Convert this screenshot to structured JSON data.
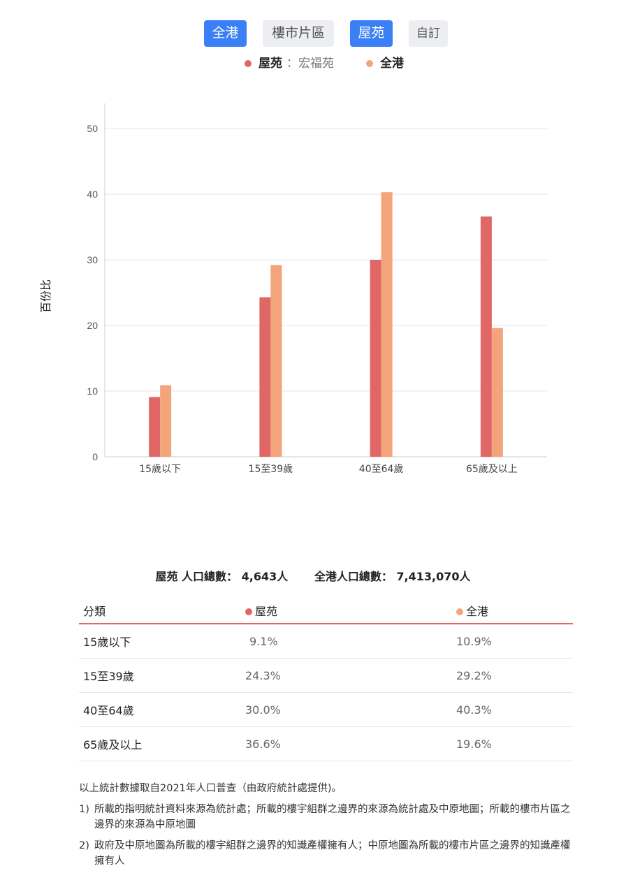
{
  "buttons": [
    {
      "label": "全港",
      "active": true
    },
    {
      "label": "樓市片區",
      "active": false
    },
    {
      "label": "屋苑",
      "active": true
    },
    {
      "label": "自訂",
      "active": false
    }
  ],
  "legend": {
    "series1": "屋苑",
    "series1_detail": "：宏福苑",
    "series2": "全港"
  },
  "colors": {
    "series1": "#e06766",
    "series2": "#f3a47a",
    "active_button": "#3a7ff5"
  },
  "chart_data": {
    "type": "bar",
    "categories": [
      "15歲以下",
      "15至39歲",
      "40至64歲",
      "65歲及以上"
    ],
    "series": [
      {
        "name": "屋苑",
        "values": [
          9.1,
          24.3,
          30.0,
          36.6
        ]
      },
      {
        "name": "全港",
        "values": [
          10.9,
          29.2,
          40.3,
          19.6
        ]
      }
    ],
    "ylabel": "百份比",
    "ylim": [
      0,
      50
    ],
    "yticks": [
      0,
      10,
      20,
      30,
      40,
      50
    ],
    "grid": true,
    "legend": "top"
  },
  "totals": {
    "estate": "屋苑 人口總數： 4,643人",
    "hk": "全港人口總數： 7,413,070人"
  },
  "table": {
    "headers": [
      "分類",
      "屋苑",
      "全港"
    ],
    "rows": [
      [
        "15歲以下",
        "9.1%",
        "10.9%"
      ],
      [
        "15至39歲",
        "24.3%",
        "29.2%"
      ],
      [
        "40至64歲",
        "30.0%",
        "40.3%"
      ],
      [
        "65歲及以上",
        "36.6%",
        "19.6%"
      ]
    ]
  },
  "notes": {
    "intro": "以上統計數據取自2021年人口普查（由政府統計處提供)。",
    "items": [
      {
        "num": "1)",
        "text": "所載的指明統計資料來源為統計處；所載的樓宇組群之邊界的來源為統計處及中原地圖；所載的樓市片區之邊界的來源為中原地圖"
      },
      {
        "num": "2)",
        "text": "政府及中原地圖為所載的樓宇組群之邊界的知識產權擁有人；中原地圖為所載的樓市片區之邊界的知識產權擁有人"
      }
    ]
  }
}
